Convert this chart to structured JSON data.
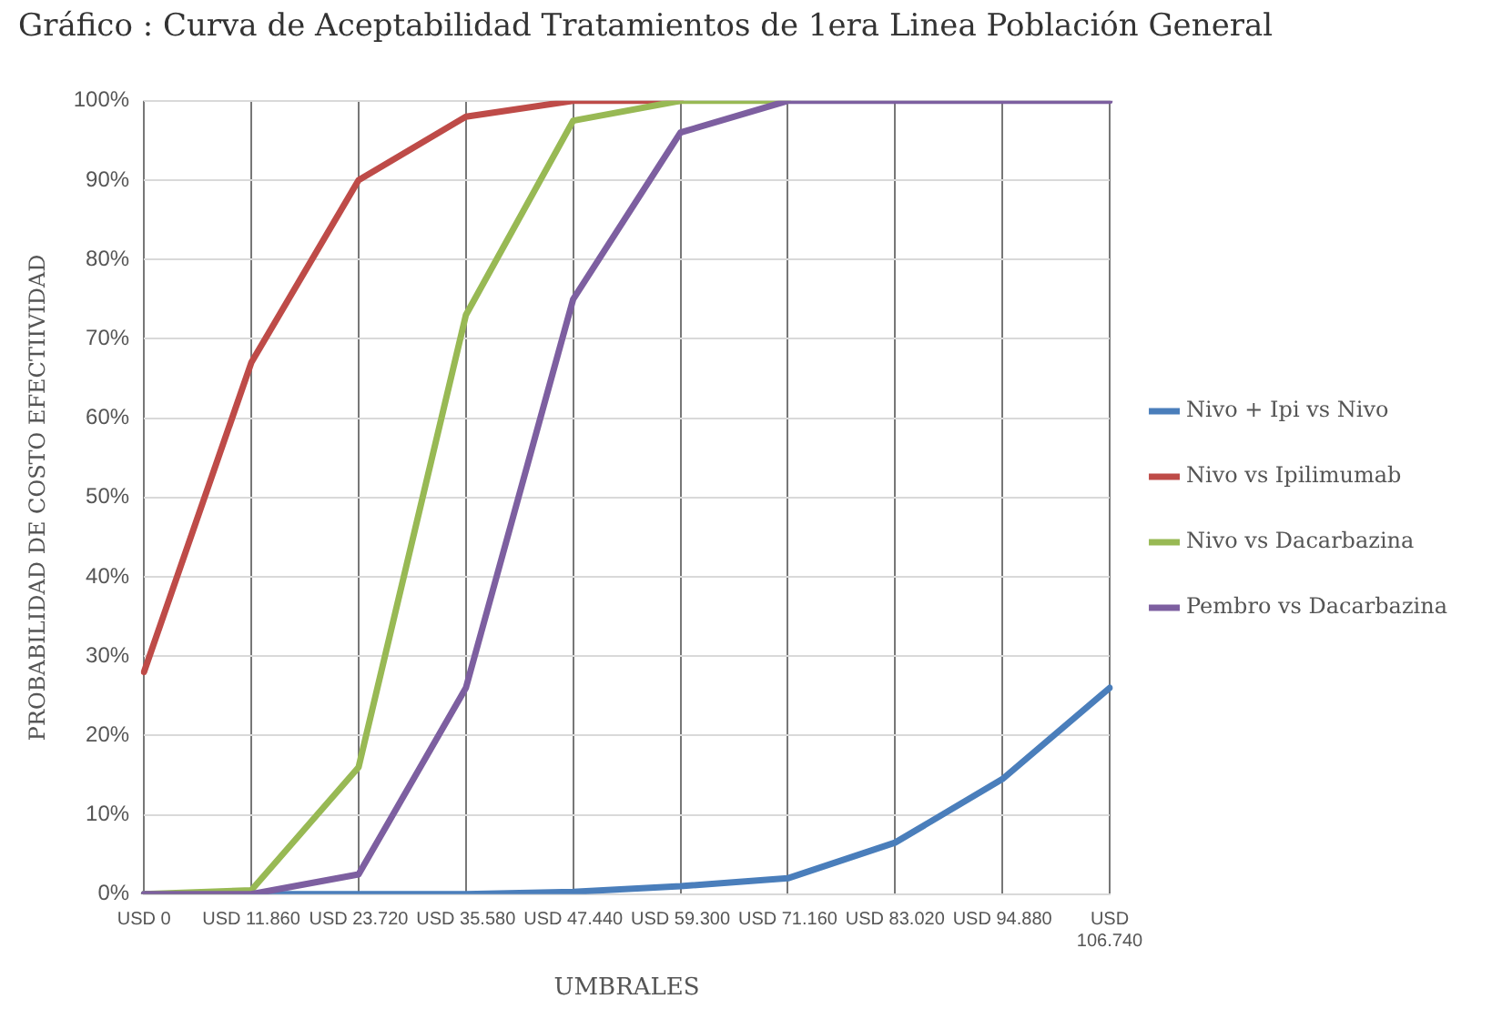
{
  "chart_data": {
    "type": "line",
    "title": "Gráfico : Curva de Aceptabilidad Tratamientos de 1era Linea Población General",
    "xlabel": "UMBRALES",
    "ylabel": "PROBABILIDAD DE COSTO EFECTIIVIDAD",
    "categories": [
      "USD 0",
      "USD 11.860",
      "USD 23.720",
      "USD 35.580",
      "USD 47.440",
      "USD 59.300",
      "USD 71.160",
      "USD 83.020",
      "USD 94.880",
      "USD 106.740"
    ],
    "series": [
      {
        "name": "Nivo + Ipi vs Nivo",
        "color": "#4a7ebb",
        "values": [
          0,
          0,
          0,
          0,
          0.3,
          1,
          2,
          6.5,
          14.5,
          26
        ]
      },
      {
        "name": "Nivo vs Ipilimumab",
        "color": "#be4b48",
        "values": [
          28,
          67,
          90,
          98,
          100,
          100,
          null,
          null,
          null,
          null
        ]
      },
      {
        "name": "Nivo vs Dacarbazina",
        "color": "#98b954",
        "values": [
          0,
          0.5,
          16,
          73,
          97.5,
          100,
          100,
          null,
          null,
          null
        ]
      },
      {
        "name": "Pembro vs Dacarbazina",
        "color": "#7d5fa0",
        "values": [
          0,
          0,
          2.5,
          26,
          75,
          96,
          100,
          100,
          100,
          100
        ]
      }
    ],
    "ylim": [
      0,
      100
    ],
    "yticks": [
      {
        "value": 0,
        "label": "0%"
      },
      {
        "value": 10,
        "label": "10%"
      },
      {
        "value": 20,
        "label": "20%"
      },
      {
        "value": 30,
        "label": "30%"
      },
      {
        "value": 40,
        "label": "40%"
      },
      {
        "value": 50,
        "label": "50%"
      },
      {
        "value": 60,
        "label": "60%"
      },
      {
        "value": 70,
        "label": "70%"
      },
      {
        "value": 80,
        "label": "80%"
      },
      {
        "value": 90,
        "label": "90%"
      },
      {
        "value": 100,
        "label": "100%"
      }
    ],
    "grid": true,
    "legend": "right",
    "marker": "none",
    "line_style": "solid"
  }
}
